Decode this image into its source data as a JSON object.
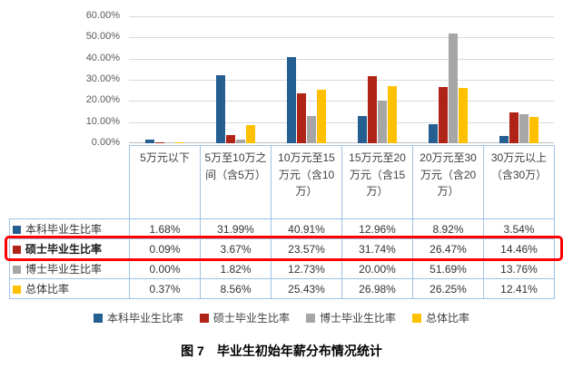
{
  "caption": "图 7　毕业生初始年薪分布情况统计",
  "colors": {
    "undergrad": "#255e91",
    "master": "#b02418",
    "phd": "#a6a6a6",
    "overall": "#ffc000",
    "highlight": "#ff0000",
    "grid": "#d9d9d9",
    "table_border": "#9dc3e6"
  },
  "chart_data": {
    "type": "bar",
    "title": "毕业生初始年薪分布情况统计",
    "categories": [
      "5万元以下",
      "5万至10万之间（含5万）",
      "10万元至15万元（含10万）",
      "15万元至20万元（含15万）",
      "20万元至30万元（含20万）",
      "30万元以上（含30万）"
    ],
    "series": [
      {
        "key": "undergrad",
        "name": "本科毕业生比率",
        "color_key": "undergrad",
        "highlighted": false,
        "values": [
          1.68,
          31.99,
          40.91,
          12.96,
          8.92,
          3.54
        ]
      },
      {
        "key": "master",
        "name": "硕士毕业生比率",
        "color_key": "master",
        "highlighted": true,
        "values": [
          0.09,
          3.67,
          23.57,
          31.74,
          26.47,
          14.46
        ]
      },
      {
        "key": "phd",
        "name": "博士毕业生比率",
        "color_key": "phd",
        "highlighted": false,
        "values": [
          0.0,
          1.82,
          12.73,
          20.0,
          51.69,
          13.76
        ]
      },
      {
        "key": "overall",
        "name": "总体比率",
        "color_key": "overall",
        "highlighted": false,
        "values": [
          0.37,
          8.56,
          25.43,
          26.98,
          26.25,
          12.41
        ]
      }
    ],
    "ylim": [
      0,
      60
    ],
    "yticks": [
      "60.00%",
      "50.00%",
      "40.00%",
      "30.00%",
      "20.00%",
      "10.00%",
      "0.00%"
    ],
    "value_suffix": "%",
    "grid": true,
    "legend_position": "bottom",
    "data_table": true
  }
}
